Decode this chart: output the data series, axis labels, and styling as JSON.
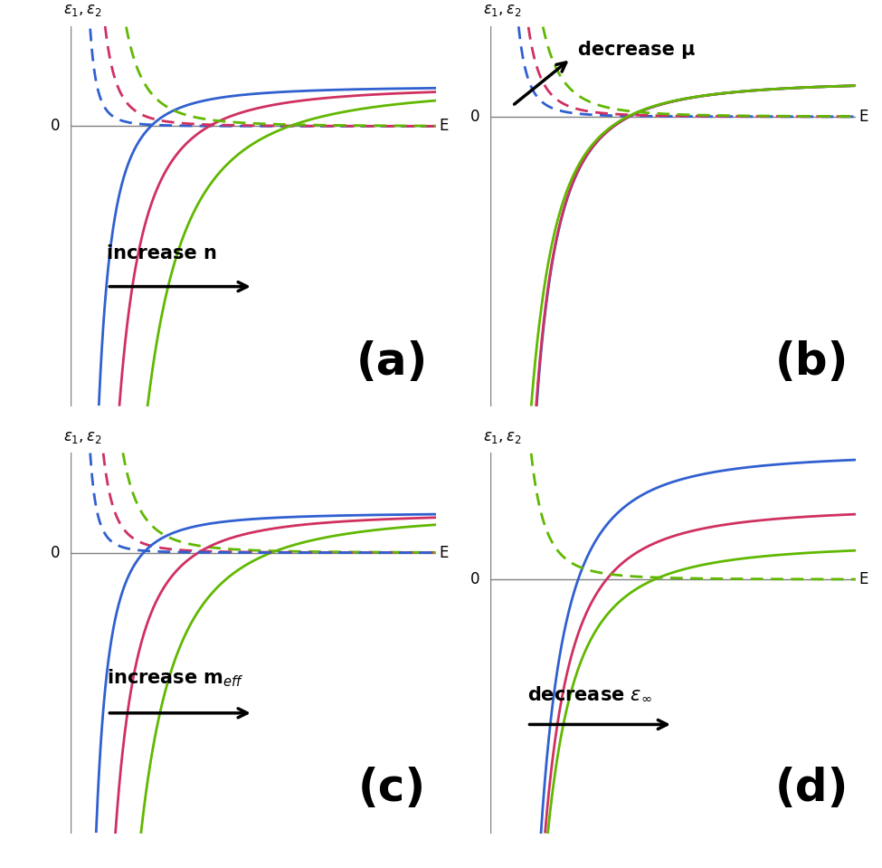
{
  "fig_width": 9.75,
  "fig_height": 9.59,
  "bg_color": "#ffffff",
  "blue": "#3060d0",
  "red": "#d03060",
  "green": "#60b800",
  "lw": 2.0,
  "panels": [
    "a",
    "b",
    "c",
    "d"
  ],
  "panel_label_fontsize": 36,
  "annotation_fontsize": 15,
  "axis_label_fontsize": 12,
  "zero_fontsize": 12,
  "E_fontsize": 12
}
